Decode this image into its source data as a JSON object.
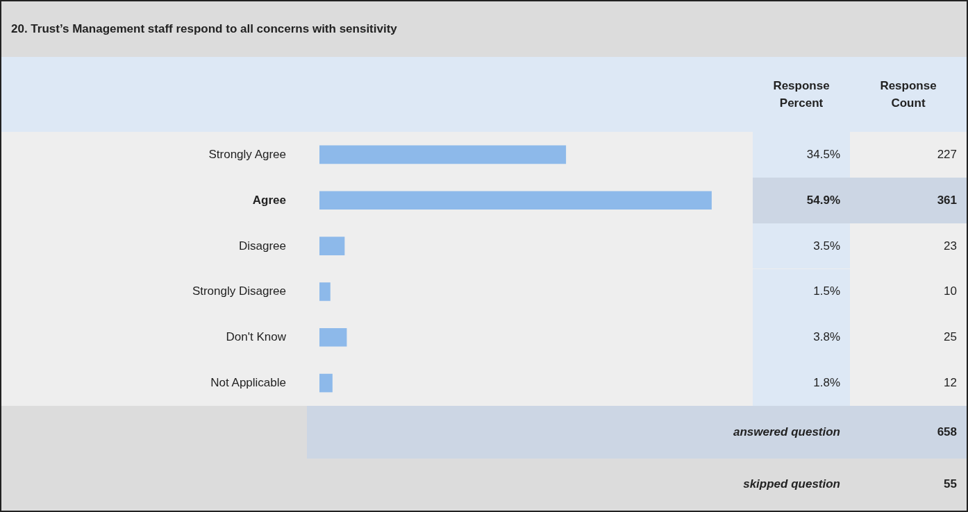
{
  "chart_data": {
    "type": "bar",
    "orientation": "horizontal",
    "title": "20. Trust’s Management staff respond to all concerns with sensitivity",
    "categories": [
      "Strongly Agree",
      "Agree",
      "Disagree",
      "Strongly Disagree",
      "Don't Know",
      "Not Applicable"
    ],
    "values": [
      34.5,
      54.9,
      3.5,
      1.5,
      3.8,
      1.8
    ],
    "value_labels": [
      "34.5%",
      "54.9%",
      "3.5%",
      "1.5%",
      "3.8%",
      "1.8%"
    ],
    "color": "#8db9ea",
    "tick_labels": false,
    "legend": false,
    "annotations": [
      "Response Percent",
      "Response Count",
      "227",
      "361",
      "23",
      "10",
      "25",
      "12",
      "answered question",
      "658",
      "skipped question",
      "55"
    ]
  }
}
